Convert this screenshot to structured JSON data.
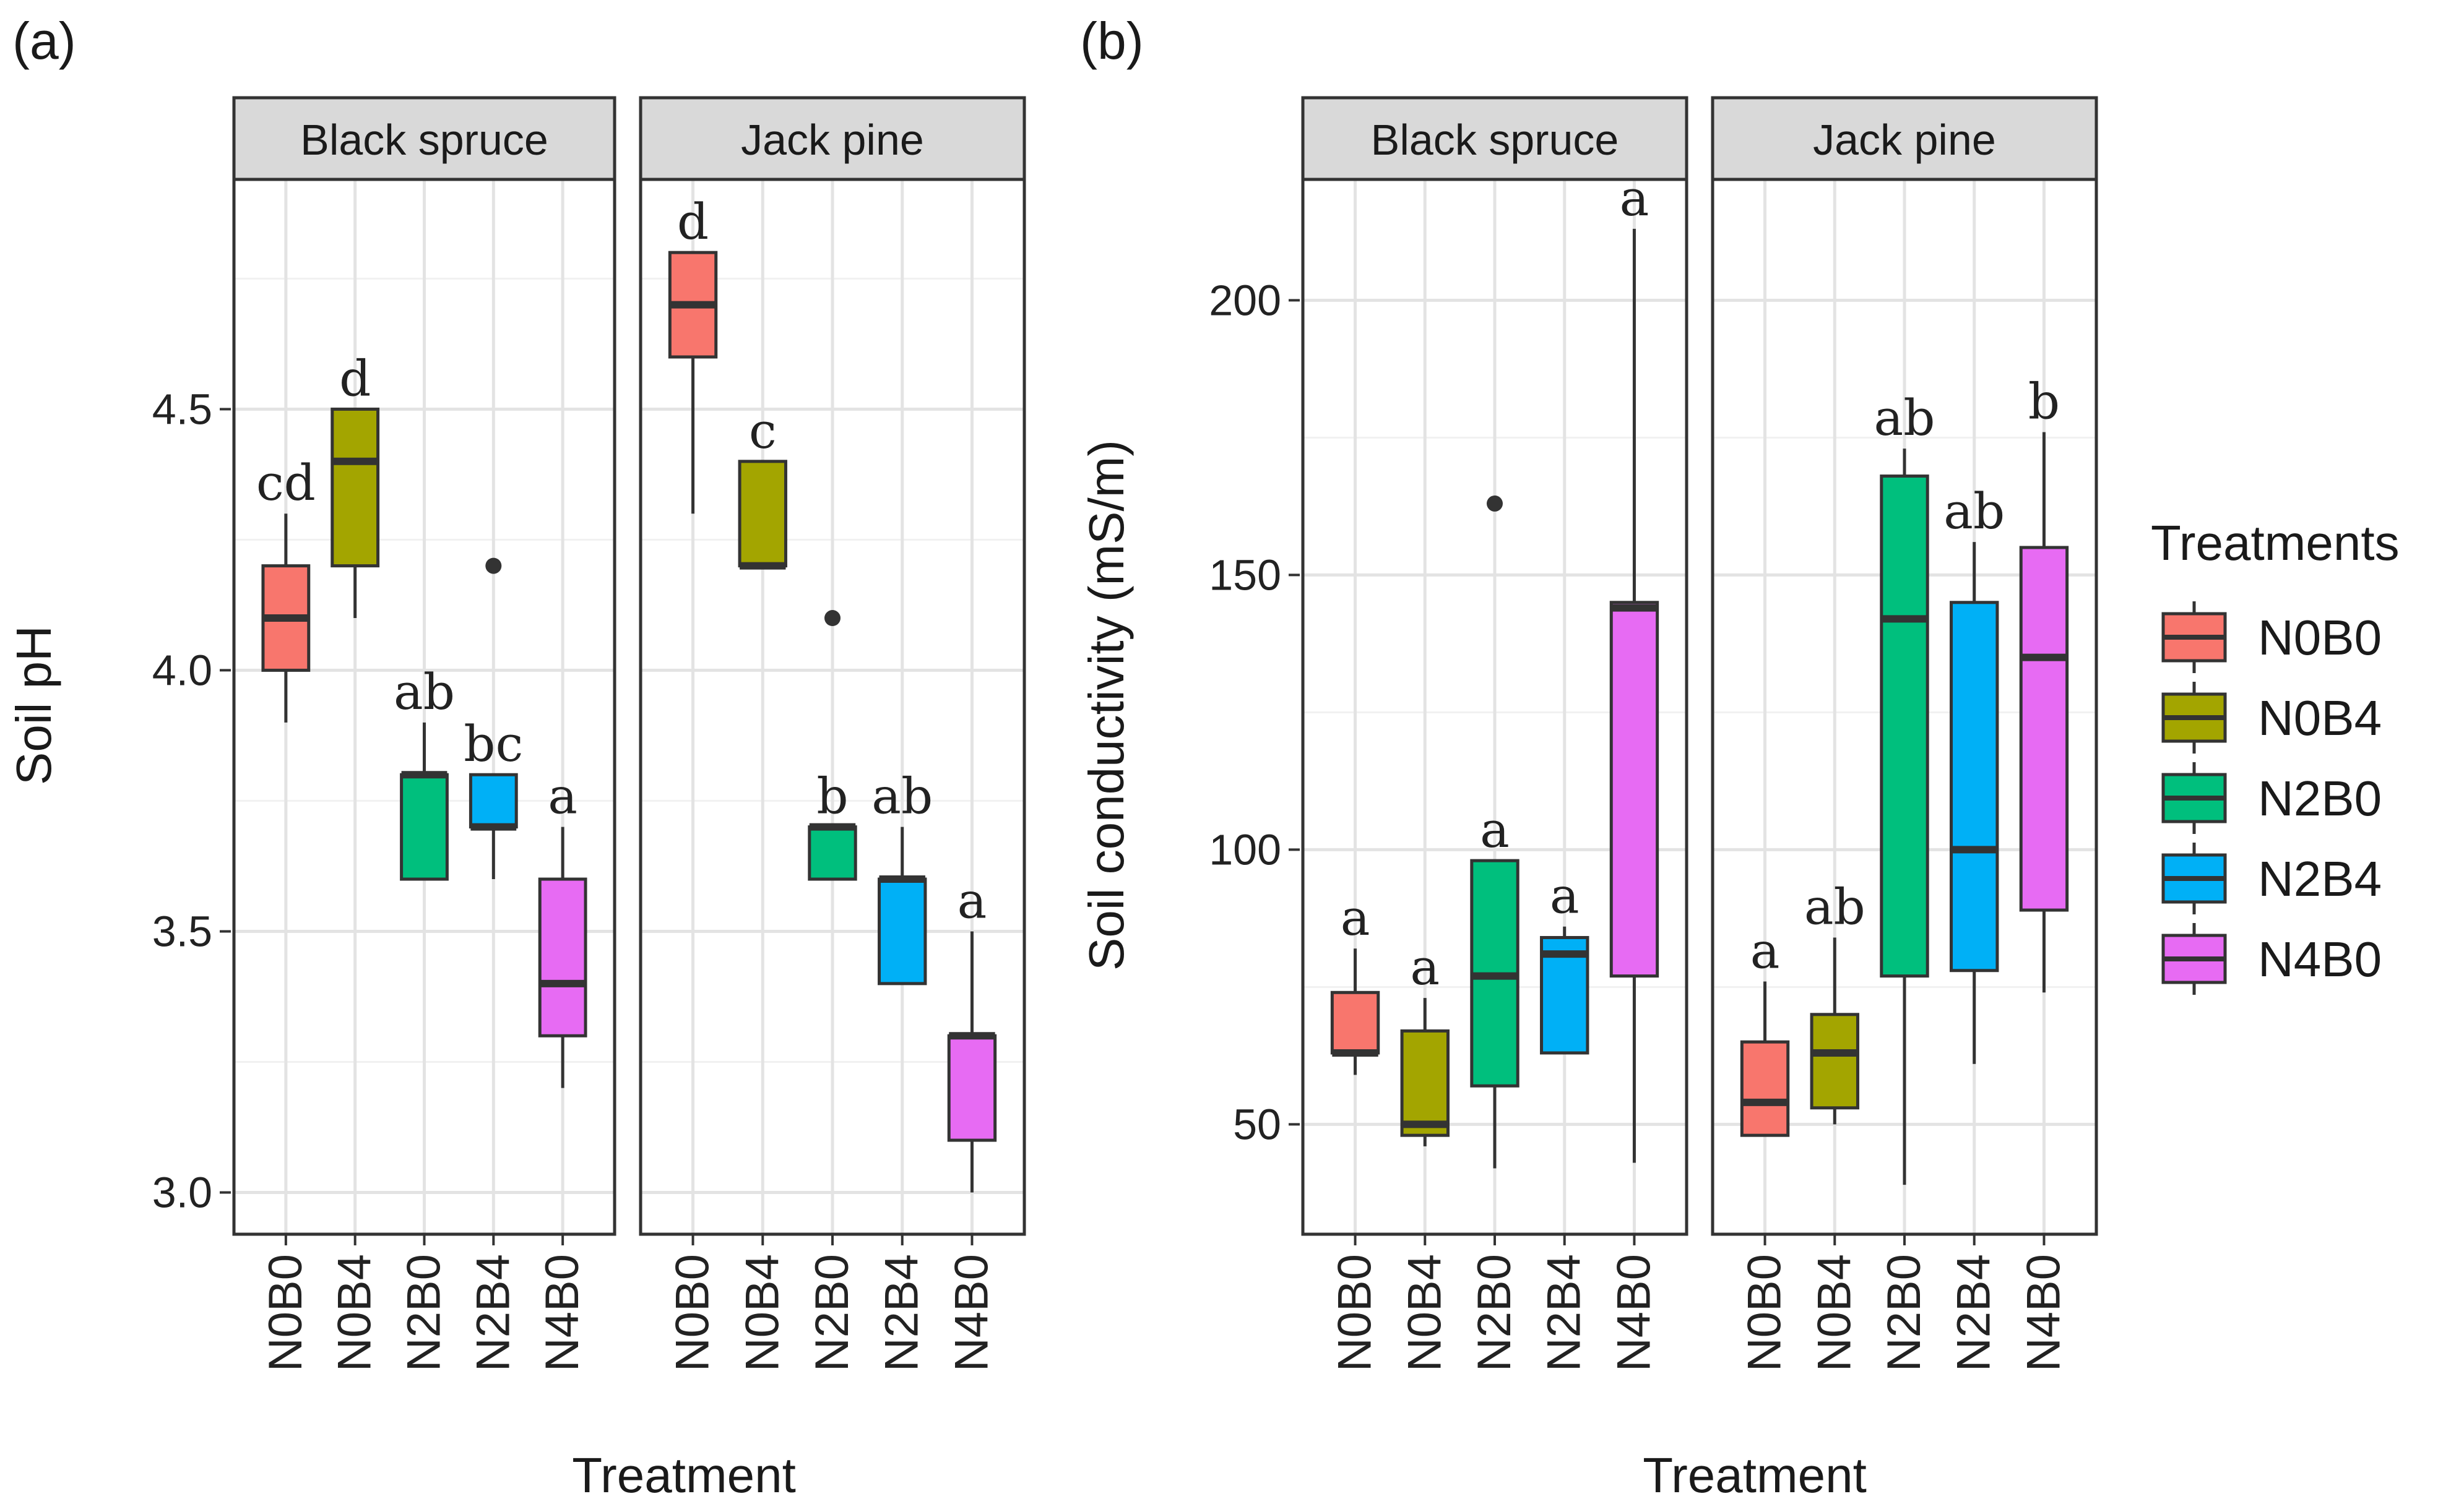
{
  "figure": {
    "panels": [
      {
        "label": "(a)",
        "ylabel": "Soil pH",
        "xlabel": "Treatment"
      },
      {
        "label": "(b)",
        "ylabel": "Soil conductivity (mS/m)",
        "xlabel": "Treatment"
      }
    ],
    "legend": {
      "title": "Treatments",
      "items": [
        {
          "label": "N0B0",
          "color": "#F8766D"
        },
        {
          "label": "N0B4",
          "color": "#A3A500"
        },
        {
          "label": "N2B0",
          "color": "#00BF7D"
        },
        {
          "label": "N2B4",
          "color": "#00B0F6"
        },
        {
          "label": "N4B0",
          "color": "#E76BF3"
        }
      ]
    }
  },
  "chart_data": [
    {
      "type": "box",
      "panel": "(a)",
      "ylabel": "Soil pH",
      "xlabel": "Treatment",
      "ylim": [
        2.92,
        4.94
      ],
      "yticks": [
        3.0,
        3.5,
        4.0,
        4.5
      ],
      "yticklabels": [
        "3.0",
        "3.5",
        "4.0",
        "4.5"
      ],
      "categories": [
        "N0B0",
        "N0B4",
        "N2B0",
        "N2B4",
        "N4B0"
      ],
      "facets": [
        {
          "name": "Black spruce",
          "boxes": [
            {
              "treatment": "N0B0",
              "min": 3.9,
              "q1": 4.0,
              "median": 4.1,
              "q3": 4.2,
              "max": 4.3,
              "outliers": [],
              "letter": "cd"
            },
            {
              "treatment": "N0B4",
              "min": 4.1,
              "q1": 4.2,
              "median": 4.4,
              "q3": 4.5,
              "max": 4.5,
              "outliers": [],
              "letter": "d"
            },
            {
              "treatment": "N2B0",
              "min": 3.6,
              "q1": 3.6,
              "median": 3.8,
              "q3": 3.8,
              "max": 3.9,
              "outliers": [],
              "letter": "ab"
            },
            {
              "treatment": "N2B4",
              "min": 3.6,
              "q1": 3.7,
              "median": 3.7,
              "q3": 3.8,
              "max": 3.8,
              "outliers": [
                4.2
              ],
              "letter": "bc"
            },
            {
              "treatment": "N4B0",
              "min": 3.2,
              "q1": 3.3,
              "median": 3.4,
              "q3": 3.6,
              "max": 3.7,
              "outliers": [],
              "letter": "a"
            }
          ]
        },
        {
          "name": "Jack pine",
          "boxes": [
            {
              "treatment": "N0B0",
              "min": 4.3,
              "q1": 4.6,
              "median": 4.7,
              "q3": 4.8,
              "max": 4.8,
              "outliers": [],
              "letter": "d"
            },
            {
              "treatment": "N0B4",
              "min": 4.2,
              "q1": 4.2,
              "median": 4.2,
              "q3": 4.4,
              "max": 4.4,
              "outliers": [],
              "letter": "c"
            },
            {
              "treatment": "N2B0",
              "min": 3.6,
              "q1": 3.6,
              "median": 3.7,
              "q3": 3.7,
              "max": 3.7,
              "outliers": [
                4.1
              ],
              "letter": "b"
            },
            {
              "treatment": "N2B4",
              "min": 3.4,
              "q1": 3.4,
              "median": 3.6,
              "q3": 3.6,
              "max": 3.7,
              "outliers": [],
              "letter": "ab"
            },
            {
              "treatment": "N4B0",
              "min": 3.0,
              "q1": 3.1,
              "median": 3.3,
              "q3": 3.3,
              "max": 3.5,
              "outliers": [],
              "letter": "a"
            }
          ]
        }
      ]
    },
    {
      "type": "box",
      "panel": "(b)",
      "ylabel": "Soil conductivity (mS/m)",
      "xlabel": "Treatment",
      "ylim": [
        30,
        222
      ],
      "yticks": [
        50,
        100,
        150,
        200
      ],
      "yticklabels": [
        "50",
        "100",
        "150",
        "200"
      ],
      "categories": [
        "N0B0",
        "N0B4",
        "N2B0",
        "N2B4",
        "N4B0"
      ],
      "facets": [
        {
          "name": "Black spruce",
          "boxes": [
            {
              "treatment": "N0B0",
              "min": 59,
              "q1": 63,
              "median": 63,
              "q3": 74,
              "max": 82,
              "outliers": [],
              "letter": "a"
            },
            {
              "treatment": "N0B4",
              "min": 46,
              "q1": 48,
              "median": 50,
              "q3": 67,
              "max": 73,
              "outliers": [],
              "letter": "a"
            },
            {
              "treatment": "N2B0",
              "min": 42,
              "q1": 57,
              "median": 77,
              "q3": 98,
              "max": 98,
              "outliers": [
                163
              ],
              "letter": "a"
            },
            {
              "treatment": "N2B4",
              "min": 63,
              "q1": 63,
              "median": 81,
              "q3": 84,
              "max": 86,
              "outliers": [],
              "letter": "a"
            },
            {
              "treatment": "N4B0",
              "min": 43,
              "q1": 77,
              "median": 144,
              "q3": 145,
              "max": 213,
              "outliers": [],
              "letter": "a"
            }
          ]
        },
        {
          "name": "Jack pine",
          "boxes": [
            {
              "treatment": "N0B0",
              "min": 48,
              "q1": 48,
              "median": 54,
              "q3": 65,
              "max": 76,
              "outliers": [],
              "letter": "a"
            },
            {
              "treatment": "N0B4",
              "min": 50,
              "q1": 53,
              "median": 63,
              "q3": 70,
              "max": 84,
              "outliers": [],
              "letter": "ab"
            },
            {
              "treatment": "N2B0",
              "min": 39,
              "q1": 77,
              "median": 142,
              "q3": 168,
              "max": 173,
              "outliers": [],
              "letter": "ab"
            },
            {
              "treatment": "N2B4",
              "min": 61,
              "q1": 78,
              "median": 100,
              "q3": 145,
              "max": 156,
              "outliers": [],
              "letter": "ab"
            },
            {
              "treatment": "N4B0",
              "min": 74,
              "q1": 89,
              "median": 135,
              "q3": 155,
              "max": 176,
              "outliers": [],
              "letter": "b"
            }
          ]
        }
      ]
    }
  ]
}
